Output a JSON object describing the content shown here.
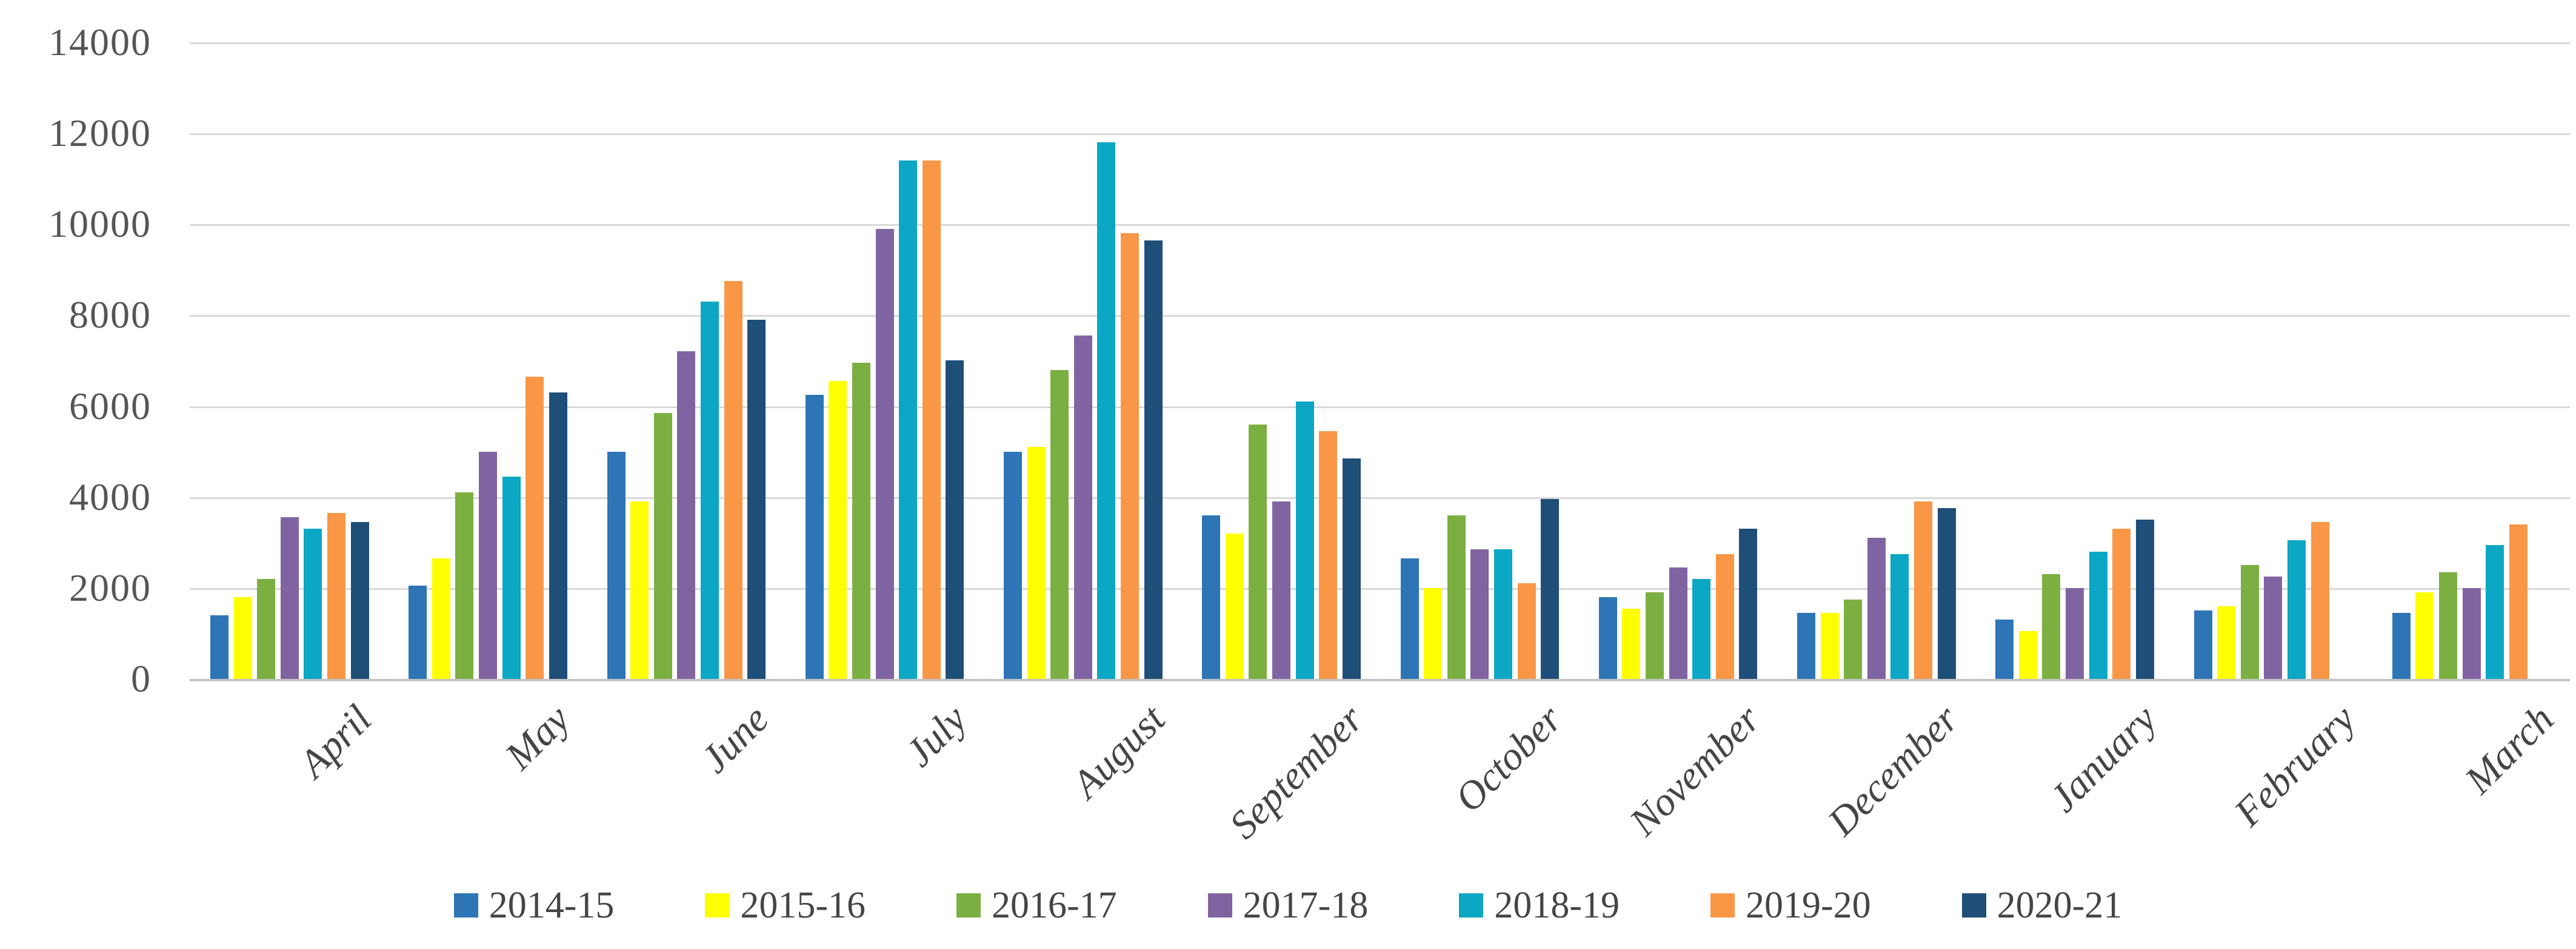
{
  "chart_data": {
    "type": "bar",
    "title": "",
    "xlabel": "",
    "ylabel": "",
    "categories": [
      "April",
      "May",
      "June",
      "July",
      "August",
      "September",
      "October",
      "November",
      "December",
      "January",
      "February",
      "March"
    ],
    "series": [
      {
        "name": "2014-15",
        "color": "#2E75B6",
        "values": [
          1400,
          2050,
          5000,
          6250,
          5000,
          3600,
          2650,
          1800,
          1450,
          1300,
          1500,
          1450
        ]
      },
      {
        "name": "2015-16",
        "color": "#FFFF00",
        "values": [
          1800,
          2650,
          3900,
          6550,
          5100,
          3200,
          2000,
          1550,
          1450,
          1050,
          1600,
          1900
        ]
      },
      {
        "name": "2016-17",
        "color": "#7CAF41",
        "values": [
          2200,
          4100,
          5850,
          6950,
          6800,
          5600,
          3600,
          1900,
          1750,
          2300,
          2500,
          2350
        ]
      },
      {
        "name": "2017-18",
        "color": "#8064A2",
        "values": [
          3550,
          5000,
          7200,
          9900,
          7550,
          3900,
          2850,
          2450,
          3100,
          2000,
          2250,
          2000
        ]
      },
      {
        "name": "2018-19",
        "color": "#0BA7C4",
        "values": [
          3300,
          4450,
          8300,
          11400,
          11800,
          6100,
          2850,
          2200,
          2750,
          2800,
          3050,
          2950
        ]
      },
      {
        "name": "2019-20",
        "color": "#F99746",
        "values": [
          3650,
          6650,
          8750,
          11400,
          9800,
          5450,
          2100,
          2750,
          3900,
          3300,
          3450,
          3400
        ]
      },
      {
        "name": "2020-21",
        "color": "#1F4E79",
        "values": [
          3450,
          6300,
          7900,
          7000,
          9650,
          4850,
          3950,
          3300,
          3750,
          3500,
          null,
          null
        ]
      }
    ],
    "ylim": [
      0,
      14000
    ],
    "ytick_step": 2000,
    "ytick_labels": [
      "0",
      "2000",
      "4000",
      "6000",
      "8000",
      "10000",
      "12000",
      "14000"
    ],
    "grid": "horizontal",
    "legend_position": "bottom"
  }
}
